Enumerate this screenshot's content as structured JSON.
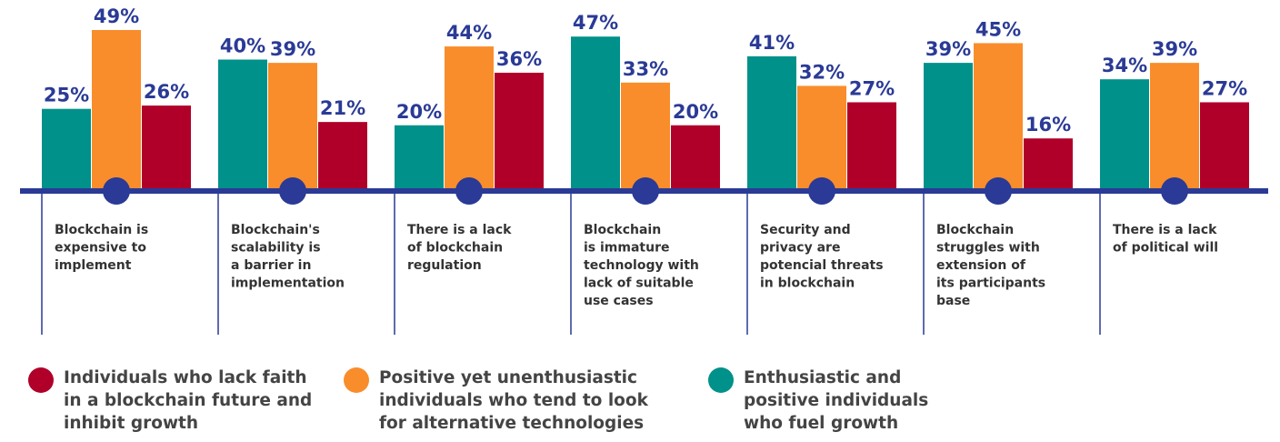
{
  "chart_data": {
    "type": "bar",
    "categories": [
      [
        "Blockchain is",
        "expensive to",
        "implement"
      ],
      [
        "Blockchain's",
        "scalability is",
        "a barrier in",
        "implementation"
      ],
      [
        "There is a lack",
        "of blockchain",
        "regulation"
      ],
      [
        "Blockchain",
        "is immature",
        "technology with",
        "lack of suitable",
        "use cases"
      ],
      [
        "Security and",
        "privacy are",
        "potencial threats",
        "in blockchain"
      ],
      [
        "Blockchain",
        "struggles with",
        "extension of",
        "its participants",
        "base"
      ],
      [
        "There is a lack",
        "of political will"
      ]
    ],
    "series": [
      {
        "name": "Enthusiastic and positive individuals who fuel growth",
        "color": "#00918a",
        "values": [
          25,
          40,
          20,
          47,
          41,
          39,
          34
        ],
        "value_labels": [
          "25%",
          "40%",
          "20%",
          "47%",
          "41%",
          "39%",
          "34%"
        ]
      },
      {
        "name": "Positive yet unenthusiastic individuals who tend to look for alternative technologies",
        "color": "#f98d2b",
        "values": [
          49,
          39,
          44,
          33,
          32,
          45,
          39
        ],
        "value_labels": [
          "49%",
          "39%",
          "44%",
          "33%",
          "32%",
          "45%",
          "39%"
        ]
      },
      {
        "name": "Individuals who lack faith in a blockchain future and inhibit growth",
        "color": "#b0002a",
        "values": [
          26,
          21,
          36,
          20,
          27,
          16,
          27
        ],
        "value_labels": [
          "26%",
          "21%",
          "36%",
          "20%",
          "27%",
          "16%",
          "27%"
        ]
      }
    ]
  }
}
